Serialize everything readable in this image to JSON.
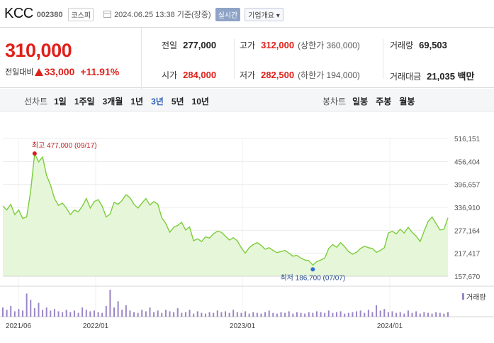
{
  "header": {
    "company": "KCC",
    "code": "002380",
    "market": "코스피",
    "timestamp": "2024.06.25 13:38 기준(장중)",
    "live_badge": "실시간",
    "info_button": "기업개요 ▾"
  },
  "quote": {
    "price": "310,000",
    "change_label": "전일대비",
    "change": "33,000",
    "change_pct": "+11.91%"
  },
  "stats": {
    "prev_close": {
      "label": "전일",
      "value": "277,000"
    },
    "open": {
      "label": "시가",
      "value": "284,000"
    },
    "high": {
      "label": "고가",
      "value": "312,000",
      "sub": "(상한가 360,000)"
    },
    "low": {
      "label": "저가",
      "value": "282,500",
      "sub": "(하한가 194,000)"
    },
    "volume": {
      "label": "거래량",
      "value": "69,503"
    },
    "amount": {
      "label": "거래대금",
      "value": "21,035 백만"
    }
  },
  "periods": {
    "line_title": "선차트",
    "line_items": [
      "1일",
      "1주일",
      "3개월",
      "1년",
      "3년",
      "5년",
      "10년"
    ],
    "selected": "3년",
    "candle_title": "봉차트",
    "candle_items": [
      "일봉",
      "주봉",
      "월봉"
    ]
  },
  "colors": {
    "up": "#e0201b",
    "line": "#7ccd3c",
    "area": "#e6f6d8",
    "volume": "#9a85c6",
    "selected": "#2f5fb6"
  },
  "chart_data": {
    "type": "area",
    "title": "",
    "y_ticks": [
      "516,151",
      "456,404",
      "396,657",
      "336,910",
      "277,164",
      "217,417",
      "157,670"
    ],
    "ylim": [
      157670,
      516151
    ],
    "x_ticks": [
      "2021/06",
      "2022/01",
      "2023/01",
      "2024/01"
    ],
    "annotations": {
      "high": "최고 477,000 (09/17)",
      "low": "최저 186,700 (07/07)"
    },
    "volume_legend": "거래량",
    "series": [
      {
        "values": [
          340000,
          330000,
          345000,
          318000,
          330000,
          308000,
          312000,
          380000,
          477000,
          455000,
          468000,
          420000,
          395000,
          360000,
          342000,
          348000,
          335000,
          318000,
          330000,
          325000,
          340000,
          360000,
          335000,
          352000,
          357000,
          340000,
          312000,
          320000,
          350000,
          345000,
          355000,
          370000,
          362000,
          345000,
          335000,
          348000,
          360000,
          343000,
          352000,
          345000,
          310000,
          295000,
          272000,
          285000,
          290000,
          298000,
          278000,
          286000,
          250000,
          255000,
          248000,
          260000,
          257000,
          268000,
          275000,
          272000,
          262000,
          252000,
          258000,
          250000,
          232000,
          218000,
          232000,
          240000,
          245000,
          238000,
          228000,
          232000,
          225000,
          219000,
          222000,
          225000,
          218000,
          210000,
          212000,
          205000,
          200000,
          198000,
          186700,
          196000,
          200000,
          205000,
          230000,
          240000,
          233000,
          245000,
          235000,
          222000,
          215000,
          220000,
          230000,
          236000,
          232000,
          230000,
          220000,
          225000,
          232000,
          270000,
          275000,
          268000,
          280000,
          270000,
          285000,
          272000,
          262000,
          248000,
          275000,
          300000,
          312000,
          295000,
          278000,
          280000,
          310000
        ]
      }
    ],
    "volume": [
      12,
      9,
      14,
      7,
      10,
      8,
      30,
      22,
      11,
      18,
      9,
      12,
      8,
      10,
      7,
      6,
      9,
      6,
      8,
      5,
      12,
      9,
      7,
      8,
      6,
      5,
      14,
      35,
      12,
      20,
      9,
      15,
      8,
      6,
      5,
      9,
      7,
      12,
      6,
      8,
      5,
      9,
      7,
      6,
      11,
      5,
      6,
      9,
      4,
      7,
      5,
      4,
      6,
      5,
      8,
      6,
      7,
      5,
      9,
      6,
      5,
      7,
      4,
      6,
      5,
      4,
      6,
      8,
      5,
      4,
      6,
      5,
      7,
      4,
      6,
      5,
      4,
      6,
      5,
      7,
      6,
      5,
      8,
      5,
      6,
      7,
      4,
      5,
      6,
      7,
      8,
      5,
      9,
      6,
      15,
      8,
      10,
      6,
      7,
      5,
      6,
      4,
      8,
      5,
      7,
      4,
      6,
      5,
      4,
      6,
      5,
      4,
      6
    ]
  }
}
